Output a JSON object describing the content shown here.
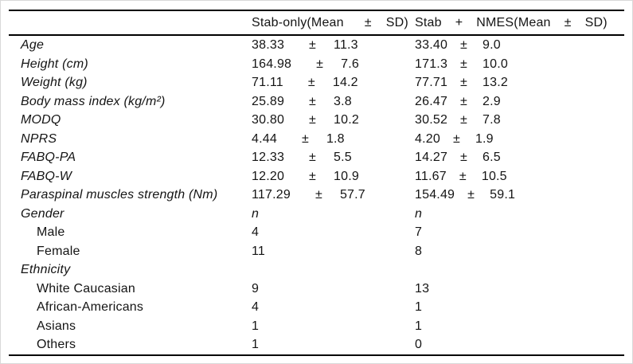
{
  "page": {
    "background": "#ffffff",
    "rule_color": "#000000",
    "text_color": "#141414"
  },
  "table": {
    "header": {
      "group1_parts": [
        "Stab-only(Mean",
        "±",
        "SD)"
      ],
      "group2_parts": [
        "Stab",
        "+",
        "NMES(Mean",
        "±",
        "SD)"
      ]
    },
    "rows": [
      {
        "label": "Age",
        "indent": false,
        "g1": [
          "38.33",
          "±",
          "11.3"
        ],
        "g2": [
          "33.40",
          "±",
          "9.0"
        ]
      },
      {
        "label": "Height (cm)",
        "indent": false,
        "g1": [
          "164.98",
          "±",
          "7.6"
        ],
        "g2": [
          "171.3",
          "±",
          "10.0"
        ]
      },
      {
        "label": "Weight (kg)",
        "indent": false,
        "g1": [
          "71.11",
          "±",
          "14.2"
        ],
        "g2": [
          "77.71",
          "±",
          "13.2"
        ]
      },
      {
        "label": "Body mass index (kg/m²)",
        "indent": false,
        "g1": [
          "25.89",
          "±",
          "3.8"
        ],
        "g2": [
          "26.47",
          "±",
          "2.9"
        ]
      },
      {
        "label": "MODQ",
        "indent": false,
        "g1": [
          "30.80",
          "±",
          "10.2"
        ],
        "g2": [
          "30.52",
          "±",
          "7.8"
        ]
      },
      {
        "label": "NPRS",
        "indent": false,
        "g1": [
          "4.44",
          "±",
          "1.8"
        ],
        "g2": [
          "4.20",
          "±",
          "1.9"
        ]
      },
      {
        "label": "FABQ-PA",
        "indent": false,
        "g1": [
          "12.33",
          "±",
          "5.5"
        ],
        "g2": [
          "14.27",
          "±",
          "6.5"
        ]
      },
      {
        "label": "FABQ-W",
        "indent": false,
        "g1": [
          "12.20",
          "±",
          "10.9"
        ],
        "g2": [
          "11.67",
          "±",
          "10.5"
        ]
      },
      {
        "label": "Paraspinal muscles strength (Nm)",
        "indent": false,
        "g1": [
          "117.29",
          "±",
          "57.7"
        ],
        "g2": [
          "154.49",
          "±",
          "59.1"
        ]
      },
      {
        "label": "Gender",
        "indent": false,
        "italic_value": true,
        "g1": [
          "n"
        ],
        "g2": [
          "n"
        ]
      },
      {
        "label": "Male",
        "indent": true,
        "g1": [
          "4"
        ],
        "g2": [
          "7"
        ]
      },
      {
        "label": "Female",
        "indent": true,
        "g1": [
          "11"
        ],
        "g2": [
          "8"
        ]
      },
      {
        "label": "Ethnicity",
        "indent": false,
        "g1": [],
        "g2": []
      },
      {
        "label": "White Caucasian",
        "indent": true,
        "g1": [
          "9"
        ],
        "g2": [
          "13"
        ]
      },
      {
        "label": "African-Americans",
        "indent": true,
        "g1": [
          "4"
        ],
        "g2": [
          "1"
        ]
      },
      {
        "label": "Asians",
        "indent": true,
        "g1": [
          "1"
        ],
        "g2": [
          "1"
        ]
      },
      {
        "label": "Others",
        "indent": true,
        "g1": [
          "1"
        ],
        "g2": [
          "0"
        ]
      }
    ]
  }
}
